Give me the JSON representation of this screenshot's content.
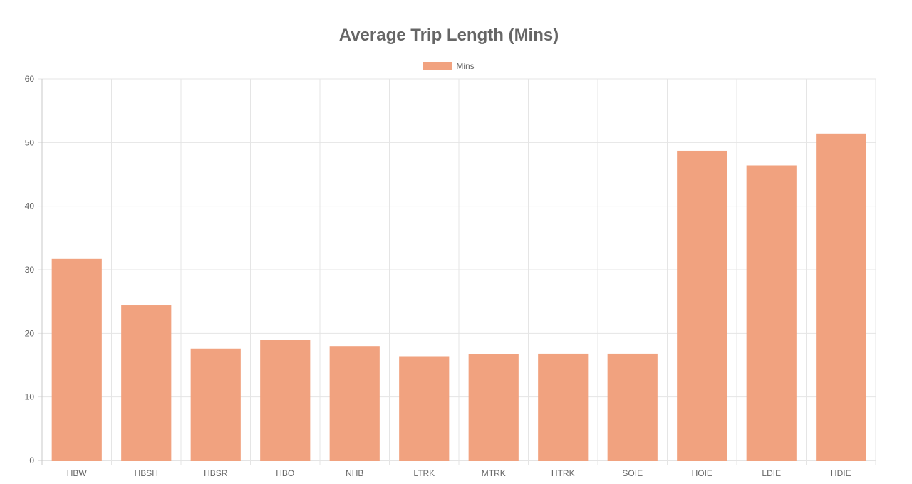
{
  "chart_data": {
    "type": "bar",
    "title": "Average Trip Length (Mins)",
    "xlabel": "",
    "ylabel": "",
    "categories": [
      "HBW",
      "HBSH",
      "HBSR",
      "HBO",
      "NHB",
      "LTRK",
      "MTRK",
      "HTRK",
      "SOIE",
      "HOIE",
      "LDIE",
      "HDIE"
    ],
    "series": [
      {
        "name": "Mins",
        "color": "#f1a27f",
        "values": [
          31.7,
          24.4,
          17.6,
          19.0,
          18.0,
          16.4,
          16.7,
          16.8,
          16.8,
          48.7,
          46.4,
          51.4
        ]
      }
    ],
    "ylim": [
      0,
      60
    ],
    "yticks": [
      0,
      10,
      20,
      30,
      40,
      50,
      60
    ],
    "grid": true,
    "legend_position": "top-center"
  }
}
